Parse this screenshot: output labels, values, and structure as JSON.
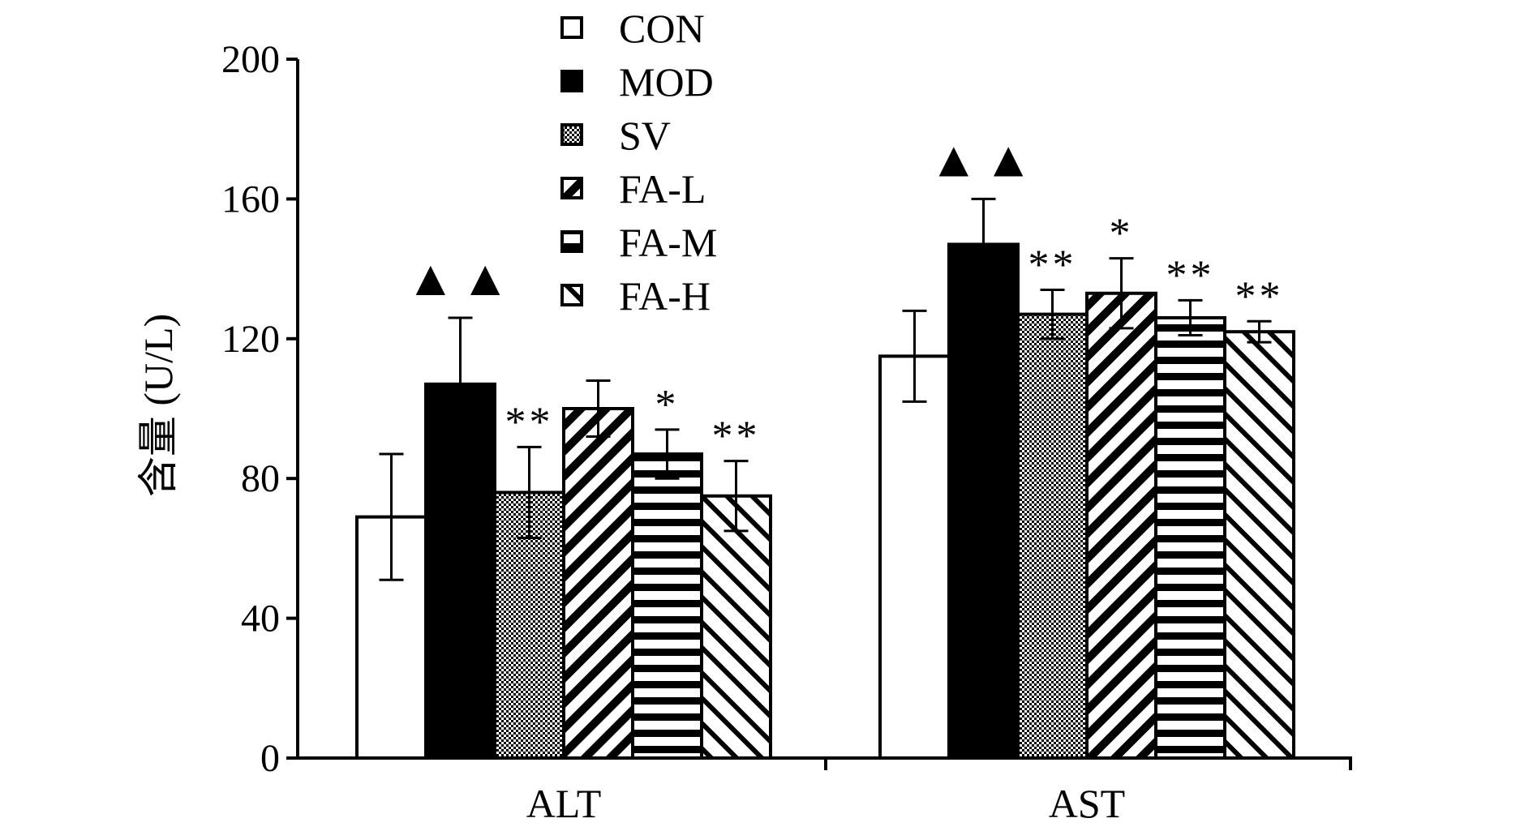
{
  "chart_data": {
    "type": "bar",
    "categories": [
      "ALT",
      "AST"
    ],
    "ylabel": "含量 (U/L)",
    "ylim": [
      0,
      200
    ],
    "yticks": [
      "0",
      "40",
      "80",
      "120",
      "160",
      "200"
    ],
    "legend_position": "top-center",
    "series": [
      {
        "name": "CON",
        "fill": "white",
        "values": [
          69,
          115
        ],
        "errors": [
          18,
          13
        ]
      },
      {
        "name": "MOD",
        "fill": "black",
        "values": [
          107,
          147
        ],
        "errors": [
          19,
          13
        ]
      },
      {
        "name": "SV",
        "fill": "crosshatch",
        "values": [
          76,
          127
        ],
        "errors": [
          13,
          7
        ]
      },
      {
        "name": "FA-L",
        "fill": "diag-down",
        "values": [
          100,
          133
        ],
        "errors": [
          8,
          10
        ]
      },
      {
        "name": "FA-M",
        "fill": "horizontal",
        "values": [
          87,
          126
        ],
        "errors": [
          7,
          5
        ]
      },
      {
        "name": "FA-H",
        "fill": "diag-up",
        "values": [
          75,
          122
        ],
        "errors": [
          10,
          3
        ]
      }
    ],
    "annotations": [
      [
        "",
        "▲▲",
        "**",
        "",
        "*",
        "**"
      ],
      [
        "",
        "▲▲",
        "**",
        "*",
        "**",
        "**"
      ]
    ]
  }
}
